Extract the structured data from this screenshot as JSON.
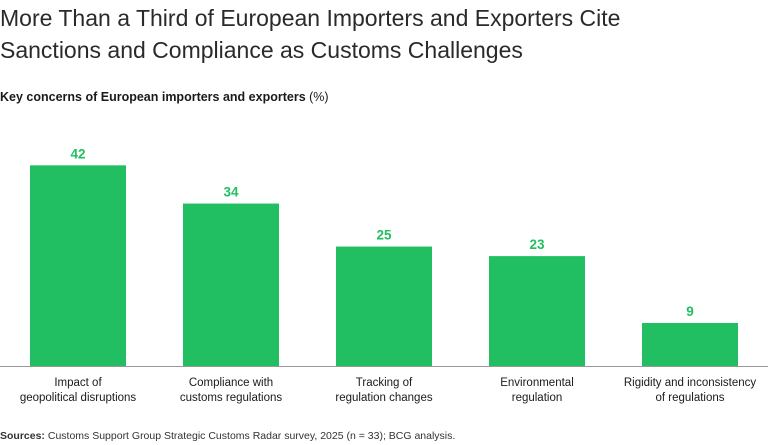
{
  "title": {
    "line1": "More Than a Third of European Importers and Exporters Cite",
    "line2": "Sanctions and Compliance as Customs Challenges"
  },
  "subtitle": {
    "main": "Key concerns of European importers and exporters",
    "unit": "(%)"
  },
  "source": {
    "label": "Sources:",
    "text": "Customs Support Group Strategic Customs Radar survey, 2025 (n = 33); BCG analysis."
  },
  "colors": {
    "bar": "#21BF61",
    "label": "#21BF61",
    "axis": "#999999"
  },
  "chart_data": {
    "type": "bar",
    "title": "Key concerns of European importers and exporters (%)",
    "xlabel": "",
    "ylabel": "",
    "ylim": [
      0,
      45
    ],
    "categories": [
      [
        "Impact of",
        "geopolitical disruptions"
      ],
      [
        "Compliance with",
        "customs regulations"
      ],
      [
        "Tracking of",
        "regulation changes"
      ],
      [
        "Environmental",
        "regulation"
      ],
      [
        "Rigidity and inconsistency",
        "of regulations"
      ]
    ],
    "values": [
      42,
      34,
      25,
      23,
      9
    ]
  }
}
